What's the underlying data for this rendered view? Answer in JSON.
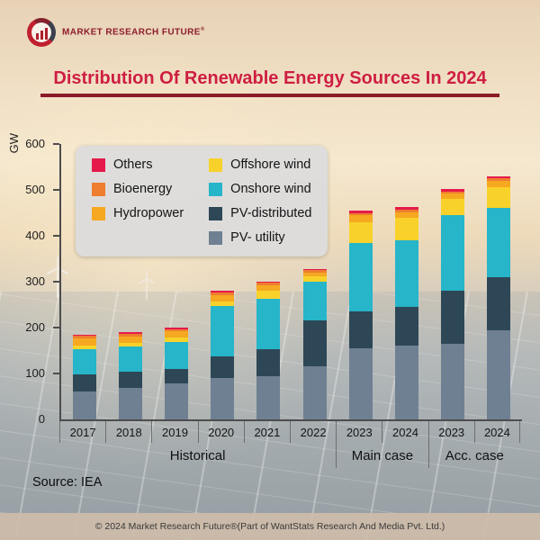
{
  "brand": {
    "name": "MARKET RESEARCH FUTURE",
    "reg": "®"
  },
  "title": "Distribution Of Renewable Energy Sources In 2024",
  "ylabel": "GW",
  "source": "Source: IEA",
  "footer": "© 2024 Market Research Future®(Part of WantStats Research And Media Pvt. Ltd.)",
  "chart_data": {
    "type": "bar",
    "stacked": true,
    "title": "Distribution Of Renewable Energy Sources In 2024",
    "xlabel": "",
    "ylabel": "GW",
    "ylim": [
      0,
      600
    ],
    "yticks": [
      0,
      100,
      200,
      300,
      400,
      500,
      600
    ],
    "grid": false,
    "legend_position": "upper-left-inside",
    "categories": [
      "2017",
      "2018",
      "2019",
      "2020",
      "2021",
      "2022",
      "2023",
      "2024",
      "2023",
      "2024"
    ],
    "groups": [
      {
        "label": "Historical",
        "span": [
          0,
          5
        ]
      },
      {
        "label": "Main case",
        "span": [
          6,
          7
        ]
      },
      {
        "label": "Acc. case",
        "span": [
          8,
          9
        ]
      }
    ],
    "series": [
      {
        "name": "PV- utility",
        "color": "#6f8092",
        "values": [
          60,
          68,
          78,
          90,
          95,
          115,
          155,
          160,
          165,
          195
        ]
      },
      {
        "name": "PV-distributed",
        "color": "#2e4756",
        "values": [
          38,
          35,
          32,
          48,
          58,
          100,
          80,
          85,
          115,
          115
        ]
      },
      {
        "name": "Onshore wind",
        "color": "#26b5c9",
        "values": [
          55,
          55,
          58,
          110,
          110,
          85,
          150,
          145,
          165,
          150
        ]
      },
      {
        "name": "Offshore wind",
        "color": "#f8d22a",
        "values": [
          8,
          8,
          10,
          8,
          18,
          12,
          45,
          50,
          35,
          45
        ]
      },
      {
        "name": "Hydropower",
        "color": "#f6a821",
        "values": [
          15,
          15,
          14,
          15,
          12,
          8,
          15,
          12,
          12,
          15
        ]
      },
      {
        "name": "Bioenergy",
        "color": "#ee7d2f",
        "values": [
          6,
          6,
          5,
          6,
          5,
          5,
          5,
          5,
          5,
          5
        ]
      },
      {
        "name": "Others",
        "color": "#e51a4b",
        "values": [
          3,
          3,
          3,
          3,
          3,
          3,
          5,
          5,
          5,
          5
        ]
      }
    ],
    "legend_order": [
      "Others",
      "Bioenergy",
      "Hydropower",
      "Offshore wind",
      "Onshore wind",
      "PV-distributed",
      "PV- utility"
    ]
  }
}
